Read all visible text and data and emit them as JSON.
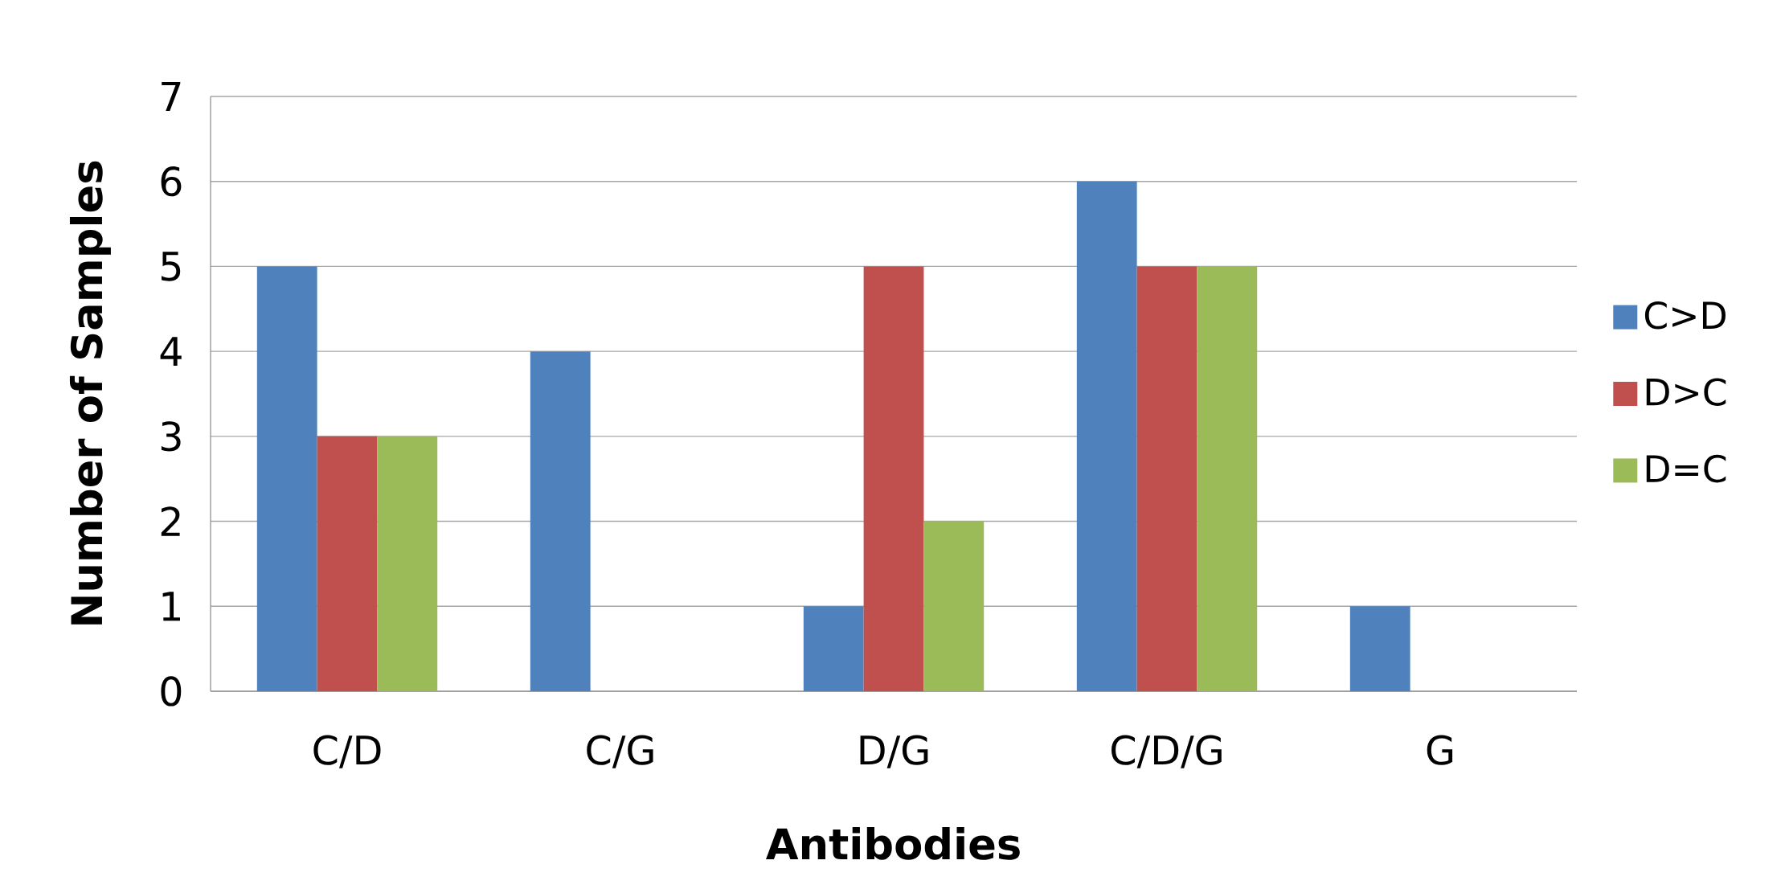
{
  "chart_data": {
    "type": "bar",
    "xlabel": "Antibodies",
    "ylabel": "Number of Samples",
    "categories": [
      "C/D",
      "C/G",
      "D/G",
      "C/D/G",
      "G"
    ],
    "series": [
      {
        "name": "C>D",
        "color": "#4f81bd",
        "values": [
          5,
          4,
          1,
          6,
          1
        ]
      },
      {
        "name": "D>C",
        "color": "#c0504d",
        "values": [
          3,
          0,
          5,
          5,
          0
        ]
      },
      {
        "name": "D=C",
        "color": "#9bbb59",
        "values": [
          3,
          0,
          2,
          5,
          0
        ]
      }
    ],
    "ylim": [
      0,
      7
    ],
    "yticks": [
      0,
      1,
      2,
      3,
      4,
      5,
      6,
      7
    ],
    "grid": "y",
    "legend": "right"
  }
}
